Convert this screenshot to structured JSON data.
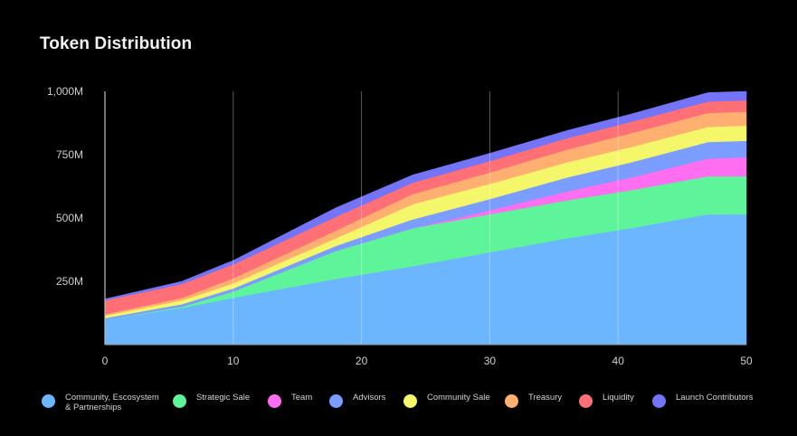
{
  "chart_data": {
    "type": "area",
    "stacked": true,
    "title": "Token Distribution",
    "xlabel": "",
    "ylabel": "",
    "xlim": [
      0,
      50
    ],
    "ylim": [
      0,
      1000
    ],
    "x_ticks": [
      "0",
      "10",
      "20",
      "30",
      "40",
      "50"
    ],
    "y_ticks": [
      "250M",
      "500M",
      "750M",
      "1,000M"
    ],
    "grid": "vertical",
    "legend_position": "bottom",
    "x": [
      0,
      6,
      10,
      18,
      24,
      30,
      36,
      41,
      47,
      50
    ],
    "series": [
      {
        "name": "Community, Escosystem\n& Partnerships",
        "color": "#6cb6ff",
        "values": [
          100,
          145,
          185,
          260,
          310,
          365,
          420,
          460,
          515,
          515
        ]
      },
      {
        "name": "Strategic Sale",
        "color": "#5ef59a",
        "values": [
          0,
          5,
          25,
          110,
          150,
          150,
          150,
          150,
          150,
          150
        ]
      },
      {
        "name": "Team",
        "color": "#ff6ef0",
        "values": [
          0,
          0,
          0,
          0,
          0,
          15,
          35,
          50,
          70,
          75
        ]
      },
      {
        "name": "Advisors",
        "color": "#7b9dff",
        "values": [
          5,
          10,
          12,
          20,
          35,
          45,
          55,
          60,
          65,
          65
        ]
      },
      {
        "name": "Community Sale",
        "color": "#f4f76a",
        "values": [
          10,
          15,
          20,
          30,
          60,
          60,
          60,
          60,
          60,
          60
        ]
      },
      {
        "name": "Treasury",
        "color": "#ffb070",
        "values": [
          5,
          10,
          20,
          30,
          40,
          45,
          50,
          55,
          55,
          55
        ]
      },
      {
        "name": "Liquidity",
        "color": "#ff6f76",
        "values": [
          55,
          55,
          55,
          55,
          45,
          45,
          45,
          45,
          45,
          45
        ]
      },
      {
        "name": "Launch Contributors",
        "color": "#7474f8",
        "values": [
          5,
          10,
          15,
          35,
          30,
          30,
          30,
          30,
          35,
          35
        ]
      }
    ]
  }
}
